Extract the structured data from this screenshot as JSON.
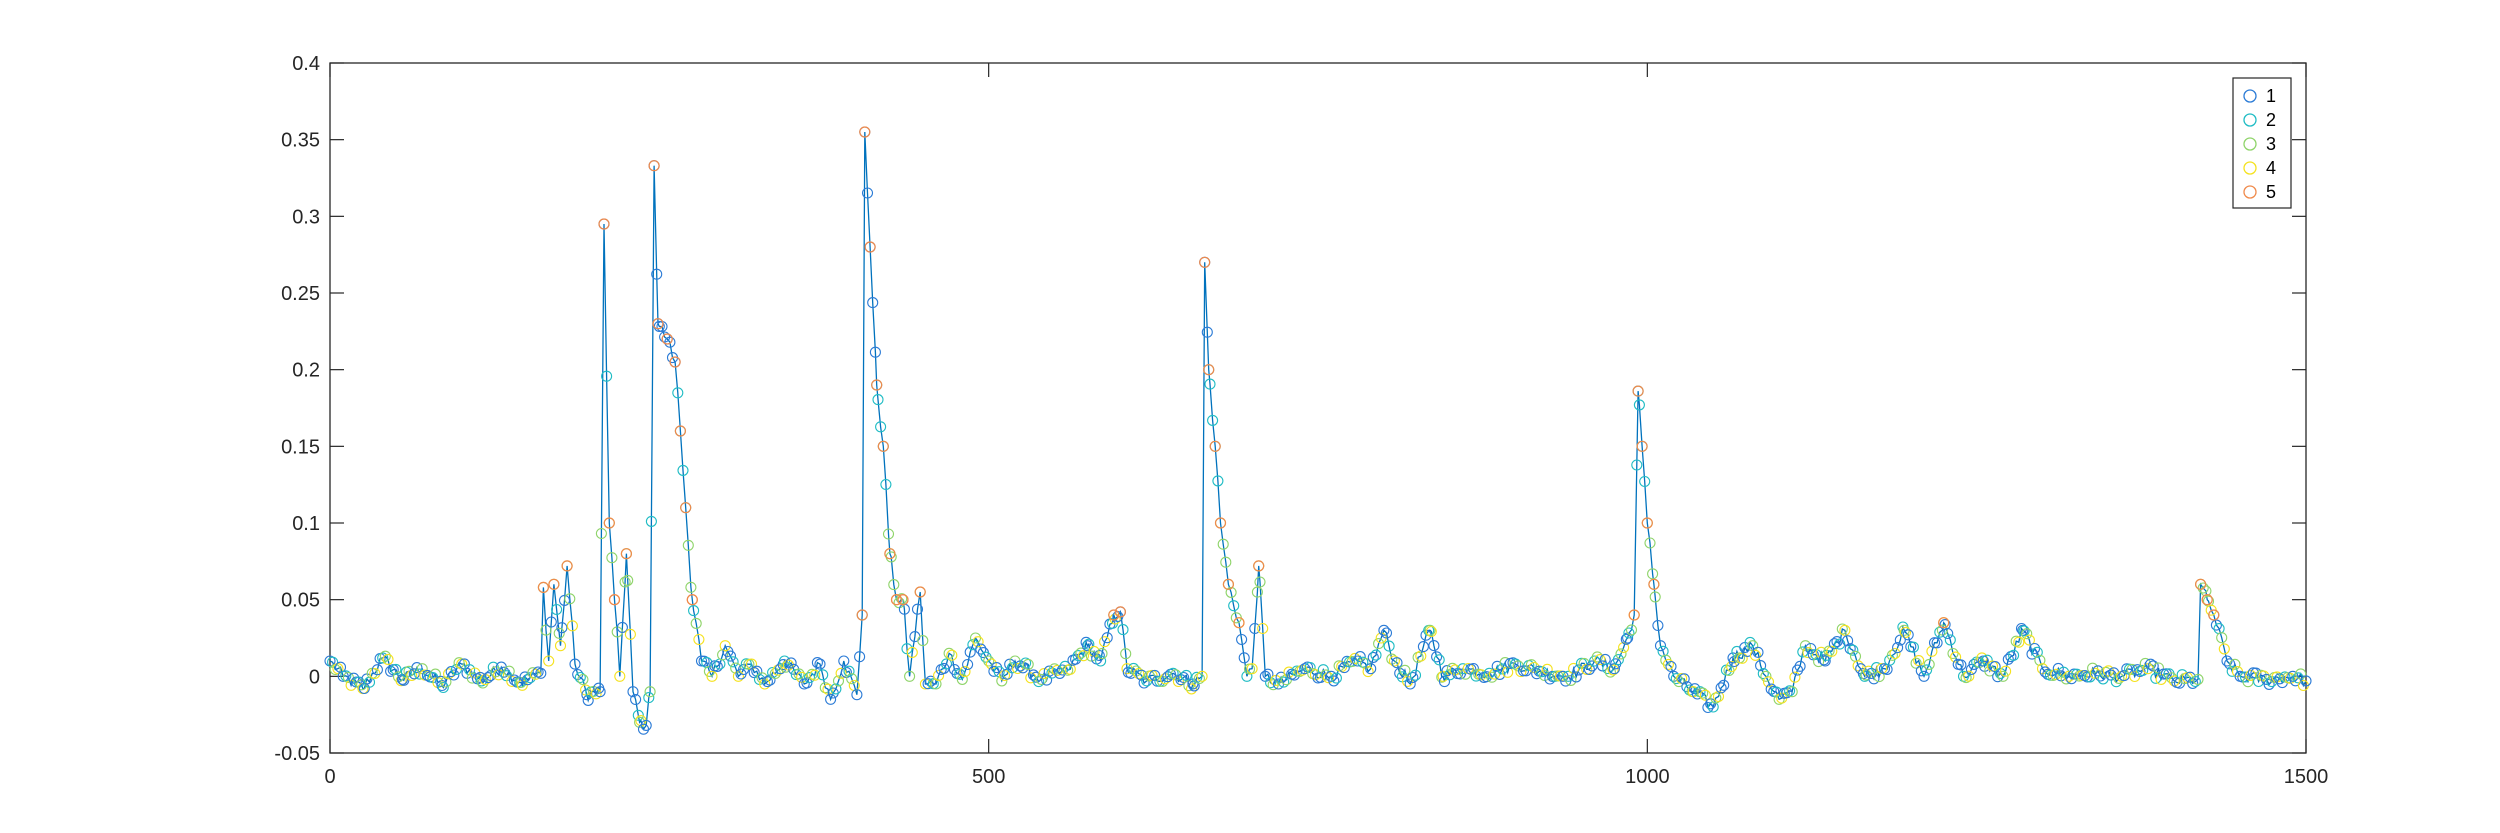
{
  "chart_data": {
    "type": "line",
    "title": "",
    "xlabel": "",
    "ylabel": "",
    "xlim": [
      0,
      1500
    ],
    "ylim": [
      -0.05,
      0.4
    ],
    "xticks": [
      0,
      500,
      1000,
      1500
    ],
    "xtick_labels": [
      "0",
      "500",
      "1000",
      "1500"
    ],
    "yticks": [
      -0.05,
      0,
      0.05,
      0.1,
      0.15,
      0.2,
      0.25,
      0.3,
      0.35,
      0.4
    ],
    "ytick_labels": [
      "-0.05",
      "0",
      "0.05",
      "0.1",
      "0.15",
      "0.2",
      "0.25",
      "0.3",
      "0.35",
      "0.4"
    ],
    "grid": false,
    "line_color": "#0072BD",
    "marker": "open-circle",
    "legend": {
      "position": "top-right",
      "entries": [
        {
          "label": "1",
          "color": "#2b7bd6"
        },
        {
          "label": "2",
          "color": "#1fbcc4"
        },
        {
          "label": "3",
          "color": "#8fd46a"
        },
        {
          "label": "4",
          "color": "#f5e21f"
        },
        {
          "label": "5",
          "color": "#f08a4b"
        }
      ]
    },
    "anchors": [
      [
        0,
        0.01
      ],
      [
        10,
        0.0
      ],
      [
        25,
        -0.008
      ],
      [
        40,
        0.012
      ],
      [
        55,
        -0.002
      ],
      [
        70,
        0.005
      ],
      [
        85,
        -0.006
      ],
      [
        100,
        0.008
      ],
      [
        115,
        -0.003
      ],
      [
        130,
        0.006
      ],
      [
        145,
        -0.004
      ],
      [
        160,
        0.002
      ],
      [
        162,
        0.058
      ],
      [
        166,
        0.01
      ],
      [
        170,
        0.06
      ],
      [
        175,
        0.02
      ],
      [
        180,
        0.072
      ],
      [
        186,
        0.008
      ],
      [
        195,
        -0.012
      ],
      [
        205,
        -0.01
      ],
      [
        208,
        0.295
      ],
      [
        212,
        0.1
      ],
      [
        216,
        0.05
      ],
      [
        220,
        0.0
      ],
      [
        225,
        0.08
      ],
      [
        230,
        -0.01
      ],
      [
        235,
        -0.03
      ],
      [
        240,
        -0.032
      ],
      [
        243,
        -0.01
      ],
      [
        246,
        0.333
      ],
      [
        249,
        0.23
      ],
      [
        256,
        0.22
      ],
      [
        262,
        0.205
      ],
      [
        266,
        0.16
      ],
      [
        270,
        0.11
      ],
      [
        275,
        0.05
      ],
      [
        282,
        0.01
      ],
      [
        290,
        0.0
      ],
      [
        300,
        0.02
      ],
      [
        310,
        0.0
      ],
      [
        320,
        0.008
      ],
      [
        330,
        -0.005
      ],
      [
        345,
        0.01
      ],
      [
        360,
        -0.005
      ],
      [
        372,
        0.008
      ],
      [
        380,
        -0.015
      ],
      [
        390,
        0.01
      ],
      [
        400,
        -0.012
      ],
      [
        404,
        0.04
      ],
      [
        406,
        0.355
      ],
      [
        410,
        0.28
      ],
      [
        415,
        0.19
      ],
      [
        420,
        0.15
      ],
      [
        425,
        0.08
      ],
      [
        430,
        0.05
      ],
      [
        435,
        0.05
      ],
      [
        440,
        0.0
      ],
      [
        448,
        0.055
      ],
      [
        452,
        -0.005
      ],
      [
        460,
        -0.005
      ],
      [
        470,
        0.015
      ],
      [
        480,
        -0.002
      ],
      [
        490,
        0.025
      ],
      [
        500,
        0.01
      ],
      [
        510,
        -0.003
      ],
      [
        520,
        0.01
      ],
      [
        540,
        -0.002
      ],
      [
        560,
        0.004
      ],
      [
        575,
        0.02
      ],
      [
        585,
        0.01
      ],
      [
        595,
        0.04
      ],
      [
        600,
        0.042
      ],
      [
        605,
        0.005
      ],
      [
        620,
        -0.003
      ],
      [
        640,
        0.002
      ],
      [
        655,
        -0.005
      ],
      [
        662,
        0.0
      ],
      [
        664,
        0.27
      ],
      [
        667,
        0.2
      ],
      [
        672,
        0.15
      ],
      [
        676,
        0.1
      ],
      [
        682,
        0.06
      ],
      [
        690,
        0.035
      ],
      [
        696,
        0.0
      ],
      [
        700,
        0.005
      ],
      [
        705,
        0.072
      ],
      [
        710,
        0.0
      ],
      [
        720,
        -0.005
      ],
      [
        740,
        0.005
      ],
      [
        760,
        0.0
      ],
      [
        780,
        0.01
      ],
      [
        790,
        0.005
      ],
      [
        800,
        0.03
      ],
      [
        808,
        0.01
      ],
      [
        820,
        -0.005
      ],
      [
        835,
        0.03
      ],
      [
        845,
        0.0
      ],
      [
        860,
        0.005
      ],
      [
        880,
        0.002
      ],
      [
        900,
        0.008
      ],
      [
        920,
        0.003
      ],
      [
        940,
        0.0
      ],
      [
        960,
        0.01
      ],
      [
        975,
        0.005
      ],
      [
        985,
        0.025
      ],
      [
        990,
        0.04
      ],
      [
        993,
        0.186
      ],
      [
        996,
        0.15
      ],
      [
        1000,
        0.1
      ],
      [
        1005,
        0.06
      ],
      [
        1010,
        0.02
      ],
      [
        1020,
        0.0
      ],
      [
        1035,
        -0.01
      ],
      [
        1050,
        -0.02
      ],
      [
        1065,
        0.012
      ],
      [
        1080,
        0.02
      ],
      [
        1090,
        0.0
      ],
      [
        1100,
        -0.015
      ],
      [
        1110,
        -0.01
      ],
      [
        1120,
        0.02
      ],
      [
        1135,
        0.01
      ],
      [
        1150,
        0.03
      ],
      [
        1165,
        0.0
      ],
      [
        1180,
        0.005
      ],
      [
        1195,
        0.03
      ],
      [
        1210,
        0.0
      ],
      [
        1225,
        0.035
      ],
      [
        1240,
        0.0
      ],
      [
        1255,
        0.01
      ],
      [
        1270,
        0.0
      ],
      [
        1285,
        0.03
      ],
      [
        1300,
        0.005
      ],
      [
        1320,
        0.0
      ],
      [
        1340,
        0.002
      ],
      [
        1360,
        0.0
      ],
      [
        1380,
        0.005
      ],
      [
        1400,
        -0.003
      ],
      [
        1418,
        -0.002
      ],
      [
        1420,
        0.06
      ],
      [
        1425,
        0.05
      ],
      [
        1430,
        0.04
      ],
      [
        1440,
        0.01
      ],
      [
        1450,
        0.0
      ],
      [
        1470,
        -0.002
      ],
      [
        1490,
        0.0
      ],
      [
        1500,
        -0.003
      ]
    ]
  }
}
